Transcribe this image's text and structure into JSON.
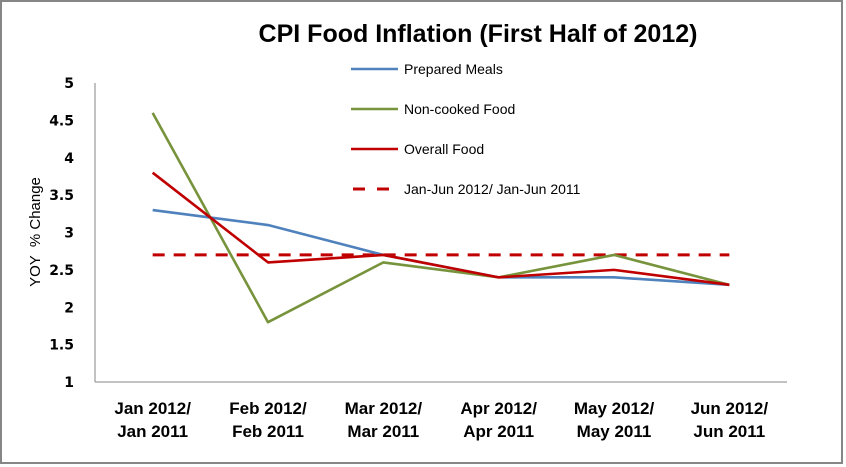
{
  "chart_data": {
    "type": "line",
    "title": "CPI Food Inflation (First Half of 2012)",
    "xlabel": "",
    "ylabel": "YOY  % Change",
    "ylim": [
      1,
      5
    ],
    "yticks": [
      "1",
      "1.5",
      "2",
      "2.5",
      "3",
      "3.5",
      "4",
      "4.5",
      "5"
    ],
    "ytick_values": [
      1,
      1.5,
      2,
      2.5,
      3,
      3.5,
      4,
      4.5,
      5
    ],
    "grid": false,
    "legend_position": "top-center",
    "categories": [
      [
        "Jan 2012/",
        "Jan 2011"
      ],
      [
        "Feb 2012/",
        "Feb 2011"
      ],
      [
        "Mar 2012/",
        "Mar 2011"
      ],
      [
        "Apr 2012/",
        "Apr 2011"
      ],
      [
        "May 2012/",
        "May 2011"
      ],
      [
        "Jun 2012/",
        "Jun 2011"
      ]
    ],
    "series": [
      {
        "name": "Prepared Meals",
        "color": "#4F81BD",
        "style": "solid",
        "values": [
          3.3,
          3.1,
          2.7,
          2.4,
          2.4,
          2.3
        ]
      },
      {
        "name": "Non-cooked Food",
        "color": "#77933C",
        "style": "solid",
        "values": [
          4.6,
          1.8,
          2.6,
          2.4,
          2.7,
          2.3
        ]
      },
      {
        "name": "Overall Food",
        "color": "#C00000",
        "style": "solid",
        "values": [
          3.8,
          2.6,
          2.7,
          2.4,
          2.5,
          2.3
        ]
      },
      {
        "name": "Jan-Jun 2012/ Jan-Jun 2011",
        "color": "#C00000",
        "style": "dashed",
        "values": [
          2.7,
          2.7,
          2.7,
          2.7,
          2.7,
          2.7
        ]
      }
    ]
  }
}
